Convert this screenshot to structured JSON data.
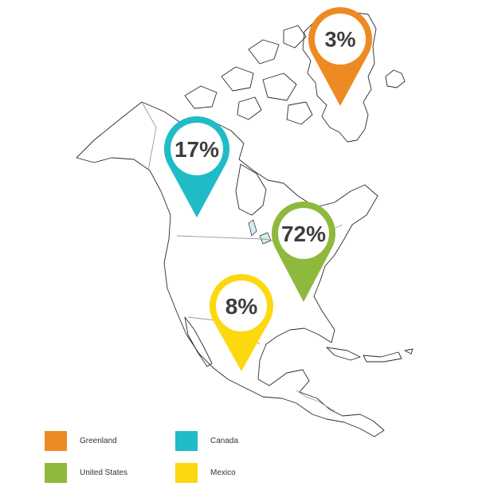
{
  "pins": [
    {
      "region": "Greenland",
      "value": "3%",
      "color": "#ee8a23"
    },
    {
      "region": "Canada",
      "value": "17%",
      "color": "#1fbcc8"
    },
    {
      "region": "United States",
      "value": "72%",
      "color": "#8fb93c"
    },
    {
      "region": "Mexico",
      "value": "8%",
      "color": "#fcd80f"
    }
  ],
  "legend": [
    {
      "label": "Greenland",
      "color": "#ee8a23"
    },
    {
      "label": "Canada",
      "color": "#1fbcc8"
    },
    {
      "label": "United States",
      "color": "#8fb93c"
    },
    {
      "label": "Mexico",
      "color": "#fcd80f"
    }
  ]
}
